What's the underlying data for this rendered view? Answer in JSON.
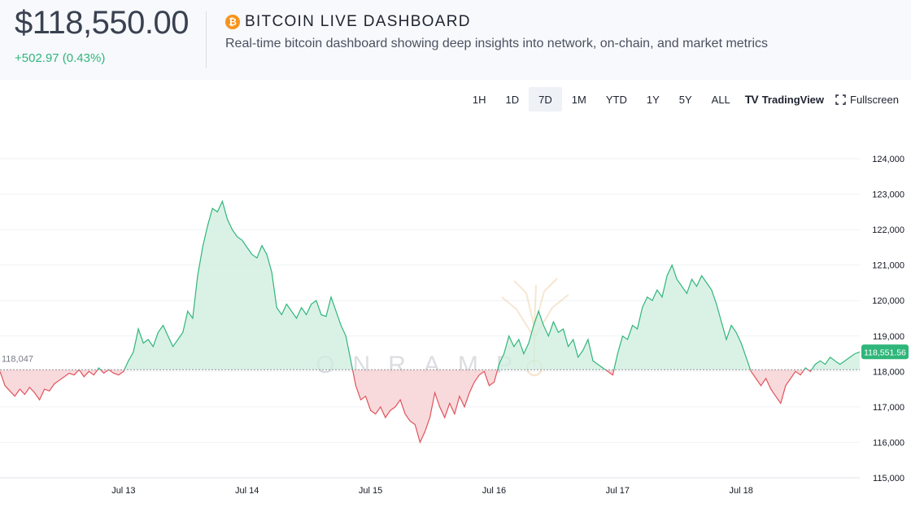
{
  "header": {
    "price": "$118,550.00",
    "change": "+502.97 (0.43%)",
    "title": "BITCOIN LIVE DASHBOARD",
    "subtitle": "Real-time bitcoin dashboard showing deep insights into network, on-chain, and market metrics",
    "btc_icon": "bitcoin-icon"
  },
  "toolbar": {
    "timeframes": [
      "1H",
      "1D",
      "7D",
      "1M",
      "YTD",
      "1Y",
      "5Y",
      "ALL"
    ],
    "active": "7D",
    "tradingview_label": "TradingView",
    "fullscreen_label": "Fullscreen"
  },
  "colors": {
    "up": "#2fb67a",
    "down": "#e0535c",
    "up_fill": "#cdeedd",
    "down_fill": "#f7d3d6"
  },
  "watermark": "ONRAMP",
  "chart_data": {
    "type": "area",
    "baseline": 118047,
    "baseline_label": "118,047",
    "last_value": 118551.56,
    "last_label": "118,551.56",
    "ylim": [
      115000,
      124000
    ],
    "y_ticks": [
      124000,
      123000,
      122000,
      121000,
      120000,
      119000,
      118000,
      117000,
      116000,
      115000
    ],
    "y_tick_labels": [
      "124,000",
      "123,000",
      "122,000",
      "121,000",
      "120,000",
      "119,000",
      "118,000",
      "117,000",
      "116,000",
      "115,000"
    ],
    "x_ticks": [
      "Jul 13",
      "Jul 14",
      "Jul 15",
      "Jul 16",
      "Jul 17",
      "Jul 18"
    ],
    "x_range_days": [
      12.0,
      18.96
    ],
    "points": [
      [
        12.0,
        118000
      ],
      [
        12.04,
        117600
      ],
      [
        12.08,
        117450
      ],
      [
        12.12,
        117300
      ],
      [
        12.16,
        117500
      ],
      [
        12.2,
        117350
      ],
      [
        12.24,
        117550
      ],
      [
        12.28,
        117400
      ],
      [
        12.32,
        117200
      ],
      [
        12.36,
        117500
      ],
      [
        12.4,
        117450
      ],
      [
        12.44,
        117650
      ],
      [
        12.48,
        117750
      ],
      [
        12.52,
        117850
      ],
      [
        12.56,
        117950
      ],
      [
        12.6,
        117900
      ],
      [
        12.64,
        118050
      ],
      [
        12.68,
        117850
      ],
      [
        12.72,
        118000
      ],
      [
        12.76,
        117900
      ],
      [
        12.8,
        118100
      ],
      [
        12.84,
        117950
      ],
      [
        12.88,
        118050
      ],
      [
        12.92,
        117950
      ],
      [
        12.96,
        117900
      ],
      [
        13.0,
        118000
      ],
      [
        13.04,
        118300
      ],
      [
        13.08,
        118550
      ],
      [
        13.12,
        119200
      ],
      [
        13.16,
        118800
      ],
      [
        13.2,
        118900
      ],
      [
        13.24,
        118700
      ],
      [
        13.28,
        119100
      ],
      [
        13.32,
        119300
      ],
      [
        13.36,
        119000
      ],
      [
        13.4,
        118700
      ],
      [
        13.44,
        118900
      ],
      [
        13.48,
        119100
      ],
      [
        13.52,
        119700
      ],
      [
        13.56,
        119500
      ],
      [
        13.6,
        120700
      ],
      [
        13.64,
        121500
      ],
      [
        13.68,
        122100
      ],
      [
        13.72,
        122600
      ],
      [
        13.76,
        122500
      ],
      [
        13.8,
        122800
      ],
      [
        13.84,
        122300
      ],
      [
        13.88,
        122000
      ],
      [
        13.92,
        121800
      ],
      [
        13.96,
        121700
      ],
      [
        14.0,
        121500
      ],
      [
        14.04,
        121300
      ],
      [
        14.08,
        121200
      ],
      [
        14.12,
        121550
      ],
      [
        14.16,
        121300
      ],
      [
        14.2,
        120800
      ],
      [
        14.24,
        119800
      ],
      [
        14.28,
        119600
      ],
      [
        14.32,
        119900
      ],
      [
        14.36,
        119700
      ],
      [
        14.4,
        119500
      ],
      [
        14.44,
        119800
      ],
      [
        14.48,
        119600
      ],
      [
        14.52,
        119900
      ],
      [
        14.56,
        120000
      ],
      [
        14.6,
        119600
      ],
      [
        14.64,
        119550
      ],
      [
        14.68,
        120100
      ],
      [
        14.72,
        119700
      ],
      [
        14.76,
        119300
      ],
      [
        14.8,
        119000
      ],
      [
        14.84,
        118300
      ],
      [
        14.88,
        117600
      ],
      [
        14.92,
        117200
      ],
      [
        14.96,
        117300
      ],
      [
        15.0,
        116900
      ],
      [
        15.04,
        116800
      ],
      [
        15.08,
        117000
      ],
      [
        15.12,
        116700
      ],
      [
        15.16,
        116900
      ],
      [
        15.2,
        117000
      ],
      [
        15.24,
        117200
      ],
      [
        15.28,
        116800
      ],
      [
        15.32,
        116600
      ],
      [
        15.36,
        116500
      ],
      [
        15.4,
        116000
      ],
      [
        15.44,
        116300
      ],
      [
        15.48,
        116700
      ],
      [
        15.52,
        117400
      ],
      [
        15.56,
        117000
      ],
      [
        15.6,
        116700
      ],
      [
        15.64,
        117100
      ],
      [
        15.68,
        116800
      ],
      [
        15.72,
        117300
      ],
      [
        15.76,
        117000
      ],
      [
        15.8,
        117400
      ],
      [
        15.84,
        117700
      ],
      [
        15.88,
        117900
      ],
      [
        15.92,
        118000
      ],
      [
        15.96,
        117600
      ],
      [
        16.0,
        117700
      ],
      [
        16.04,
        118200
      ],
      [
        16.08,
        118500
      ],
      [
        16.12,
        119000
      ],
      [
        16.16,
        118700
      ],
      [
        16.2,
        118900
      ],
      [
        16.24,
        118500
      ],
      [
        16.28,
        118800
      ],
      [
        16.32,
        119300
      ],
      [
        16.36,
        119700
      ],
      [
        16.4,
        119300
      ],
      [
        16.44,
        119000
      ],
      [
        16.48,
        119400
      ],
      [
        16.52,
        119100
      ],
      [
        16.56,
        119200
      ],
      [
        16.6,
        118700
      ],
      [
        16.64,
        118900
      ],
      [
        16.68,
        118400
      ],
      [
        16.72,
        118600
      ],
      [
        16.76,
        118900
      ],
      [
        16.8,
        118300
      ],
      [
        16.84,
        118200
      ],
      [
        16.88,
        118100
      ],
      [
        16.92,
        118000
      ],
      [
        16.96,
        117900
      ],
      [
        17.0,
        118500
      ],
      [
        17.04,
        119000
      ],
      [
        17.08,
        118900
      ],
      [
        17.12,
        119300
      ],
      [
        17.16,
        119200
      ],
      [
        17.2,
        119800
      ],
      [
        17.24,
        120100
      ],
      [
        17.28,
        120000
      ],
      [
        17.32,
        120300
      ],
      [
        17.36,
        120100
      ],
      [
        17.4,
        120700
      ],
      [
        17.44,
        121000
      ],
      [
        17.48,
        120600
      ],
      [
        17.52,
        120400
      ],
      [
        17.56,
        120200
      ],
      [
        17.6,
        120600
      ],
      [
        17.64,
        120400
      ],
      [
        17.68,
        120700
      ],
      [
        17.72,
        120500
      ],
      [
        17.76,
        120300
      ],
      [
        17.8,
        119900
      ],
      [
        17.84,
        119400
      ],
      [
        17.88,
        118900
      ],
      [
        17.92,
        119300
      ],
      [
        17.96,
        119100
      ],
      [
        18.0,
        118800
      ],
      [
        18.04,
        118400
      ],
      [
        18.08,
        118000
      ],
      [
        18.12,
        117800
      ],
      [
        18.16,
        117600
      ],
      [
        18.2,
        117800
      ],
      [
        18.24,
        117500
      ],
      [
        18.28,
        117300
      ],
      [
        18.32,
        117100
      ],
      [
        18.36,
        117600
      ],
      [
        18.4,
        117800
      ],
      [
        18.44,
        118000
      ],
      [
        18.48,
        117900
      ],
      [
        18.52,
        118100
      ],
      [
        18.56,
        118000
      ],
      [
        18.6,
        118200
      ],
      [
        18.64,
        118300
      ],
      [
        18.68,
        118200
      ],
      [
        18.72,
        118400
      ],
      [
        18.76,
        118300
      ],
      [
        18.8,
        118200
      ],
      [
        18.84,
        118300
      ],
      [
        18.88,
        118400
      ],
      [
        18.92,
        118500
      ],
      [
        18.96,
        118550
      ]
    ]
  }
}
